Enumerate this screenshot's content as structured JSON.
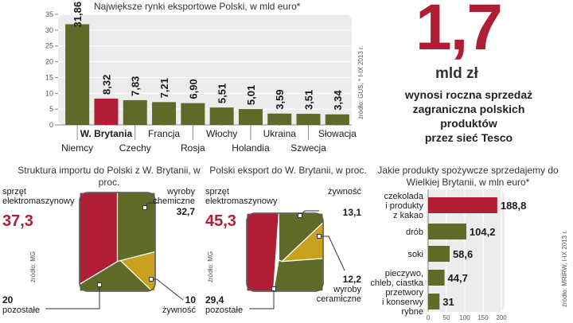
{
  "colors": {
    "olive": "#5f6a28",
    "red": "#b01e36",
    "mustard": "#c8a21f",
    "grey": "#ececec",
    "axis": "#888888",
    "ink": "#1a1a1a"
  },
  "headline": {
    "value": "1,7",
    "unit": "mld zł",
    "text": [
      "wynosi roczna sprzedaż",
      "zagraniczna polskich",
      "produktów",
      "przez sieć Tesco"
    ]
  },
  "chart_data": [
    {
      "type": "bar",
      "title": "Największe rynki eksportowe Polski, w mld euro*",
      "source": "źródło: GUS, * I-IX 2013 r.",
      "categories": [
        "Niemcy",
        "W. Brytania",
        "Czechy",
        "Francja",
        "Rosja",
        "Włochy",
        "Holandia",
        "Ukraina",
        "Szwecja",
        "Słowacja"
      ],
      "values": [
        31.86,
        8.32,
        7.83,
        7.21,
        6.9,
        5.51,
        5.01,
        3.59,
        3.51,
        3.34
      ],
      "value_labels": [
        "31,86",
        "8,32",
        "7,83",
        "7,21",
        "6,90",
        "5,51",
        "5,01",
        "3,59",
        "3,51",
        "3,34"
      ],
      "highlight_index": 1,
      "yticks": [
        "0",
        "5",
        "10",
        "15",
        "20",
        "25",
        "30",
        "35"
      ],
      "ylim": [
        0,
        35
      ],
      "grid": true
    },
    {
      "type": "pie",
      "title": "Struktura importu do Polski z W. Brytanii, w proc.",
      "source": "źródło: MG",
      "slices": [
        {
          "label": "sprzęt elektromaszynowy",
          "label_lines": [
            "sprzęt",
            "elektromaszynowy"
          ],
          "value": 37.3,
          "value_label": "37,3",
          "color": "red"
        },
        {
          "label": "wyroby chemiczne",
          "label_lines": [
            "wyroby",
            "chemiczne"
          ],
          "value": 32.7,
          "value_label": "32,7",
          "color": "olive"
        },
        {
          "label": "żywność",
          "label_lines": [
            "żywność"
          ],
          "value": 10,
          "value_label": "10",
          "color": "mustard"
        },
        {
          "label": "pozostałe",
          "label_lines": [
            "pozostałe"
          ],
          "value": 20,
          "value_label": "20",
          "color": "olive"
        }
      ]
    },
    {
      "type": "pie",
      "title": "Polski eksport do W. Brytanii, w proc.",
      "source": "źródło: MG",
      "slices": [
        {
          "label": "sprzęt elektromaszynowy",
          "label_lines": [
            "sprzęt",
            "elektromaszynowy"
          ],
          "value": 45.3,
          "value_label": "45,3",
          "color": "red"
        },
        {
          "label": "żywność",
          "label_lines": [
            "żywność"
          ],
          "value": 13.1,
          "value_label": "13,1",
          "color": "olive"
        },
        {
          "label": "wyroby ceramiczne",
          "label_lines": [
            "wyroby",
            "ceramiczne"
          ],
          "value": 12.2,
          "value_label": "12,2",
          "color": "mustard"
        },
        {
          "label": "pozostałe",
          "label_lines": [
            "pozostałe"
          ],
          "value": 29.4,
          "value_label": "29,4",
          "color": "olive"
        }
      ]
    },
    {
      "type": "bar",
      "orientation": "horizontal",
      "title": "Jakie produkty spożywcze sprzedajemy do Wielkiej Brytanii, w mln euro*",
      "source": "źródło: MRiRW, I-IX 2013 r.",
      "categories": [
        "czekolada i produkty z kakao",
        "drób",
        "soki",
        "pieczywo, chleb, ciastka",
        "przetwory i konserwy rybne"
      ],
      "category_lines": [
        [
          "czekolada",
          "i produkty",
          "z kakao"
        ],
        [
          "drób"
        ],
        [
          "soki"
        ],
        [
          "pieczywo,",
          "chleb, ciastka"
        ],
        [
          "przetwory",
          "i konserwy",
          "rybne"
        ]
      ],
      "values": [
        188.8,
        104.2,
        58.6,
        44.7,
        31
      ],
      "value_labels": [
        "188,8",
        "104,2",
        "58,6",
        "44,7",
        "31"
      ],
      "highlight_index": 0,
      "xticks": [
        "0",
        "50",
        "100",
        "150",
        "200"
      ],
      "xlim": [
        0,
        200
      ]
    }
  ]
}
